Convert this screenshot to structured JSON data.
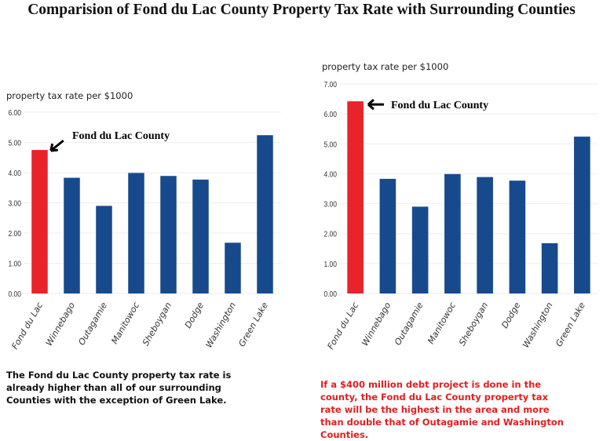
{
  "title": "Comparision of Fond du Lac County Property Tax Rate with Surrounding Counties",
  "colors": {
    "highlight": "#e8232a",
    "bar": "#174a8c"
  },
  "chart_data": [
    {
      "type": "bar",
      "ylabel": "property tax rate per $1000",
      "ylim": [
        0,
        6
      ],
      "yticks": [
        "0.00",
        "1.00",
        "2.00",
        "3.00",
        "4.00",
        "5.00",
        "6.00"
      ],
      "grid": true,
      "categories": [
        "Fond du Lac",
        "Winnebago",
        "Outagamie",
        "Manitowoc",
        "Sheboygan",
        "Dodge",
        "Washington",
        "Green Lake"
      ],
      "values": [
        4.75,
        3.83,
        2.9,
        3.99,
        3.89,
        3.77,
        1.68,
        5.24
      ],
      "annotation": "Fond du Lac County"
    },
    {
      "type": "bar",
      "ylabel": "property tax rate per $1000",
      "ylim": [
        0,
        7
      ],
      "yticks": [
        "0.00",
        "1.00",
        "2.00",
        "3.00",
        "4.00",
        "5.00",
        "6.00",
        "7.00"
      ],
      "grid": true,
      "categories": [
        "Fond du Lac",
        "Winnebago",
        "Outagamie",
        "Manitowoc",
        "Sheboygan",
        "Dodge",
        "Washington",
        "Green Lake"
      ],
      "values": [
        6.42,
        3.83,
        2.9,
        3.99,
        3.89,
        3.77,
        1.68,
        5.24
      ],
      "annotation": "Fond du Lac County"
    }
  ],
  "captions": {
    "left": "The Fond du Lac County property tax rate is already higher than all of our surrounding Counties with the exception of Green Lake.",
    "right": "If a $400 million debt project is done in the county, the Fond du Lac County property tax rate will be the highest in the area and more than double that of Outagamie and Washington Counties."
  }
}
